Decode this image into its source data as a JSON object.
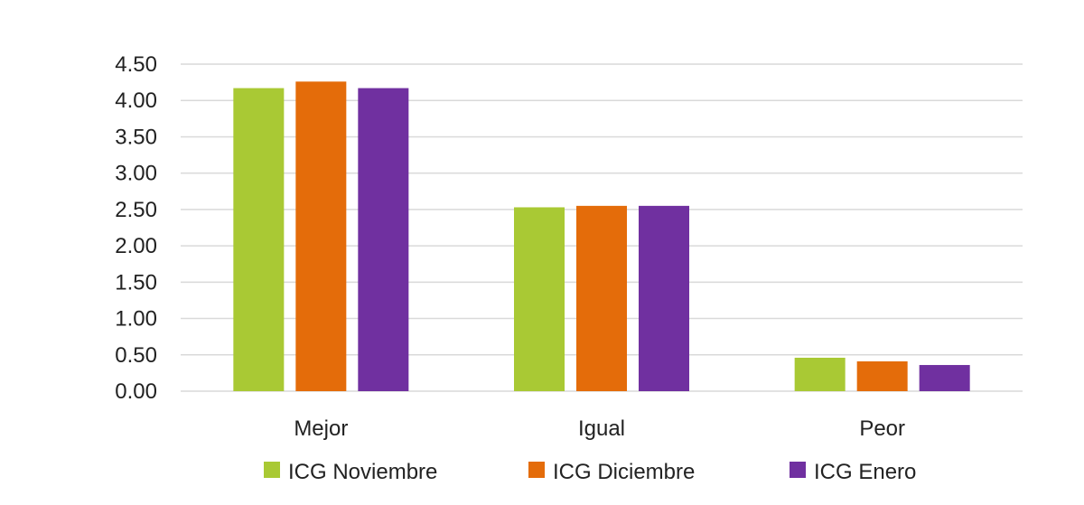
{
  "chart_data": {
    "type": "bar",
    "categories": [
      "Mejor",
      "Igual",
      "Peor"
    ],
    "series": [
      {
        "name": "ICG Noviembre",
        "color": "#a9c934",
        "values": [
          4.17,
          2.53,
          0.46
        ]
      },
      {
        "name": "ICG Diciembre",
        "color": "#e46c0a",
        "values": [
          4.26,
          2.55,
          0.41
        ]
      },
      {
        "name": "ICG Enero",
        "color": "#7030a0",
        "values": [
          4.17,
          2.55,
          0.36
        ]
      }
    ],
    "ylim": [
      0,
      4.5
    ],
    "yticks": [
      "0.00",
      "0.50",
      "1.00",
      "1.50",
      "2.00",
      "2.50",
      "3.00",
      "3.50",
      "4.00",
      "4.50"
    ],
    "grid": true,
    "legend_position": "bottom"
  }
}
